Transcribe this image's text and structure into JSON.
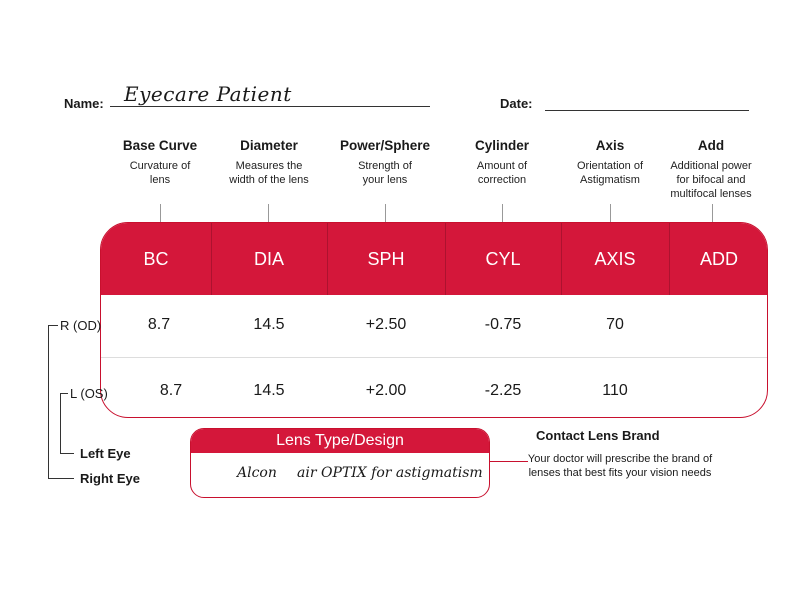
{
  "header": {
    "name_label": "Name:",
    "name_value": "Eyecare Patient",
    "date_label": "Date:",
    "date_value": ""
  },
  "columns": [
    {
      "key": "BC",
      "title": "Base Curve",
      "desc": "Curvature of lens"
    },
    {
      "key": "DIA",
      "title": "Diameter",
      "desc": "Measures the width of the lens"
    },
    {
      "key": "SPH",
      "title": "Power/Sphere",
      "desc": "Strength of your lens"
    },
    {
      "key": "CYL",
      "title": "Cylinder",
      "desc": "Amount of correction"
    },
    {
      "key": "AXIS",
      "title": "Axis",
      "desc": "Orientation of Astigmatism"
    },
    {
      "key": "ADD",
      "title": "Add",
      "desc": "Additional power for bifocal and multifocal lenses"
    }
  ],
  "rows": [
    {
      "label": "R (OD)",
      "values": [
        "8.7",
        "14.5",
        "+2.50",
        "-0.75",
        "70",
        ""
      ]
    },
    {
      "label": "L (OS)",
      "values": [
        "8.7",
        "14.5",
        "+2.00",
        "-2.25",
        "110",
        ""
      ]
    }
  ],
  "eyes": {
    "left": "Left Eye",
    "right": "Right Eye"
  },
  "lens_type": {
    "title": "Lens Type/Design",
    "brand": "Alcon",
    "product": "air OPTIX for astigmatism"
  },
  "contact_brand": {
    "title": "Contact Lens Brand",
    "desc": "Your doctor will prescribe the brand of lenses that best fits your vision needs"
  },
  "colors": {
    "accent": "#d4173a",
    "border": "#c8102e"
  }
}
